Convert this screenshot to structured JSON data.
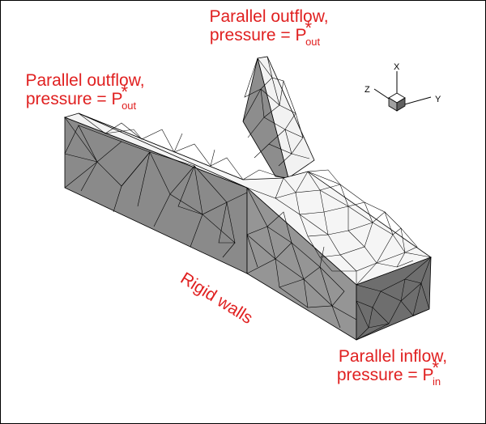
{
  "labels": {
    "outflow_top": {
      "line1": "Parallel outflow,",
      "prefix": "pressure = P",
      "superscript": "*",
      "subscript": "out"
    },
    "outflow_left": {
      "line1": "Parallel outflow,",
      "prefix": "pressure = P",
      "superscript": "*",
      "subscript": "out"
    },
    "walls": {
      "text": "Rigid walls"
    },
    "inflow": {
      "line1": "Parallel inflow,",
      "prefix": "pressure = P",
      "superscript": "*",
      "subscript": "in"
    }
  },
  "axes": {
    "x": "X",
    "y": "Y",
    "z": "Z"
  },
  "colors": {
    "label": "#e02020",
    "face_dark": "#7a7a7a",
    "face_mid": "#9c9c9c",
    "face_light": "#f4f4f4",
    "mesh": "#000000"
  }
}
